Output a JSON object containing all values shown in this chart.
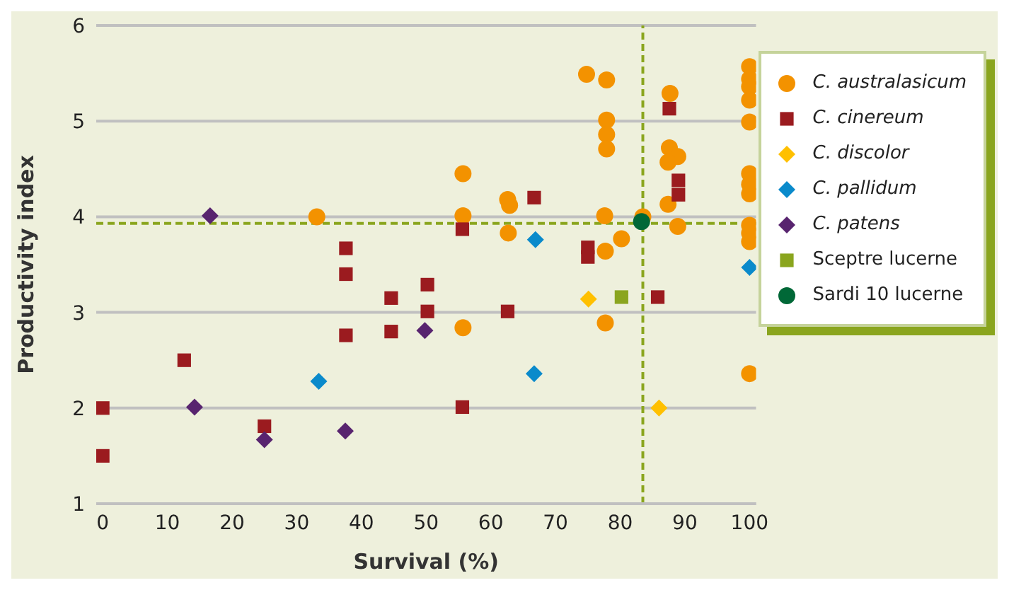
{
  "chart_data": {
    "type": "scatter",
    "xlabel": "Survival (%)",
    "ylabel": "Productivity index",
    "xlim": [
      -1,
      101
    ],
    "xticks": [
      0,
      10,
      20,
      30,
      40,
      50,
      60,
      70,
      80,
      90,
      100
    ],
    "ylim": [
      1,
      6
    ],
    "yticks": [
      1,
      2,
      3,
      4,
      5,
      6
    ],
    "grid": "y",
    "legend": "top right",
    "ref_lines": [
      {
        "axis": "y",
        "value": 3.93,
        "color": "#8aa51e",
        "line_style": "dashed"
      },
      {
        "axis": "x",
        "value": 83.5,
        "color": "#8aa51e",
        "line_style": "dashed"
      }
    ],
    "series": [
      {
        "name": "C. australasicum",
        "color": "#f39200",
        "marker": "circle",
        "x": [
          33.1,
          74.8,
          77.9,
          87.7,
          100,
          100,
          100,
          100,
          100,
          77.9,
          77.9,
          77.9,
          87.6,
          88.9,
          87.4,
          55.7,
          100,
          100,
          100,
          62.6,
          62.9,
          87.4,
          55.7,
          77.6,
          83.5,
          100,
          88.9,
          62.7,
          80.2,
          100,
          100,
          77.7,
          55.7,
          77.7,
          100
        ],
        "values": [
          4.0,
          5.49,
          5.43,
          5.29,
          5.57,
          5.44,
          5.36,
          5.22,
          4.99,
          5.01,
          4.86,
          4.71,
          4.72,
          4.63,
          4.57,
          4.45,
          4.45,
          4.34,
          4.24,
          4.18,
          4.12,
          4.13,
          4.01,
          4.01,
          4.0,
          3.91,
          3.9,
          3.83,
          3.77,
          3.83,
          3.74,
          3.64,
          2.84,
          2.89,
          2.36
        ]
      },
      {
        "name": "C. cinereum",
        "color": "#9b1b1f",
        "marker": "square",
        "x": [
          0,
          0,
          12.6,
          25,
          37.6,
          37.6,
          37.6,
          44.6,
          44.6,
          50.2,
          50.2,
          87.6,
          89,
          89,
          66.7,
          55.6,
          75,
          75,
          62.6,
          85.8,
          55.6
        ],
        "values": [
          2.0,
          1.5,
          2.5,
          1.81,
          3.67,
          3.4,
          2.76,
          3.15,
          2.8,
          3.29,
          3.01,
          5.13,
          4.38,
          4.23,
          4.2,
          3.87,
          3.68,
          3.58,
          3.01,
          3.16,
          2.01
        ]
      },
      {
        "name": "C. discolor",
        "color": "#ffc000",
        "marker": "diamond",
        "x": [
          75.1,
          86
        ],
        "values": [
          3.14,
          2.0
        ]
      },
      {
        "name": "C. pallidum",
        "color": "#0a8acb",
        "marker": "diamond",
        "x": [
          33.4,
          66.9,
          66.7,
          100
        ],
        "values": [
          2.28,
          3.76,
          2.36,
          3.47
        ]
      },
      {
        "name": "C. patens",
        "color": "#58246f",
        "marker": "diamond",
        "x": [
          16.6,
          14.2,
          25,
          37.5,
          49.8
        ],
        "values": [
          4.01,
          2.01,
          1.67,
          1.76,
          2.81
        ]
      },
      {
        "name": "Sceptre lucerne",
        "color": "#8aa51e",
        "marker": "square",
        "x": [
          80.2
        ],
        "values": [
          3.16
        ]
      },
      {
        "name": "Sardi 10 lucerne",
        "color": "#006837",
        "marker": "circle",
        "x": [
          83.3
        ],
        "values": [
          3.95
        ]
      }
    ]
  }
}
